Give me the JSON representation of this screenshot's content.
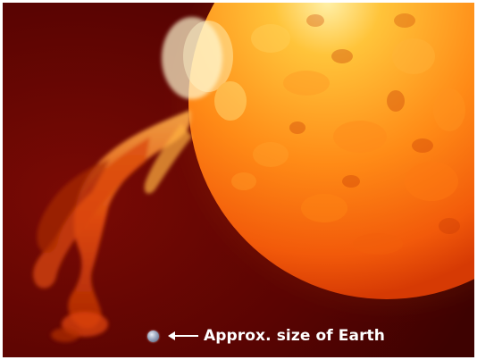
{
  "image": {
    "subject": "solar prominence erupting from the Sun with an Earth-size scale marker",
    "colors": {
      "background": "#5e0402",
      "sun_core": "#ffd15a",
      "sun_mid": "#ff7a10",
      "sun_edge": "#e23e05",
      "prominence": "#f25a10",
      "caption_text": "#ffffff"
    }
  },
  "caption": {
    "text": "Approx. size of Earth",
    "marker_icon": "earth-dot-icon",
    "pointer_icon": "left-arrow-icon"
  }
}
